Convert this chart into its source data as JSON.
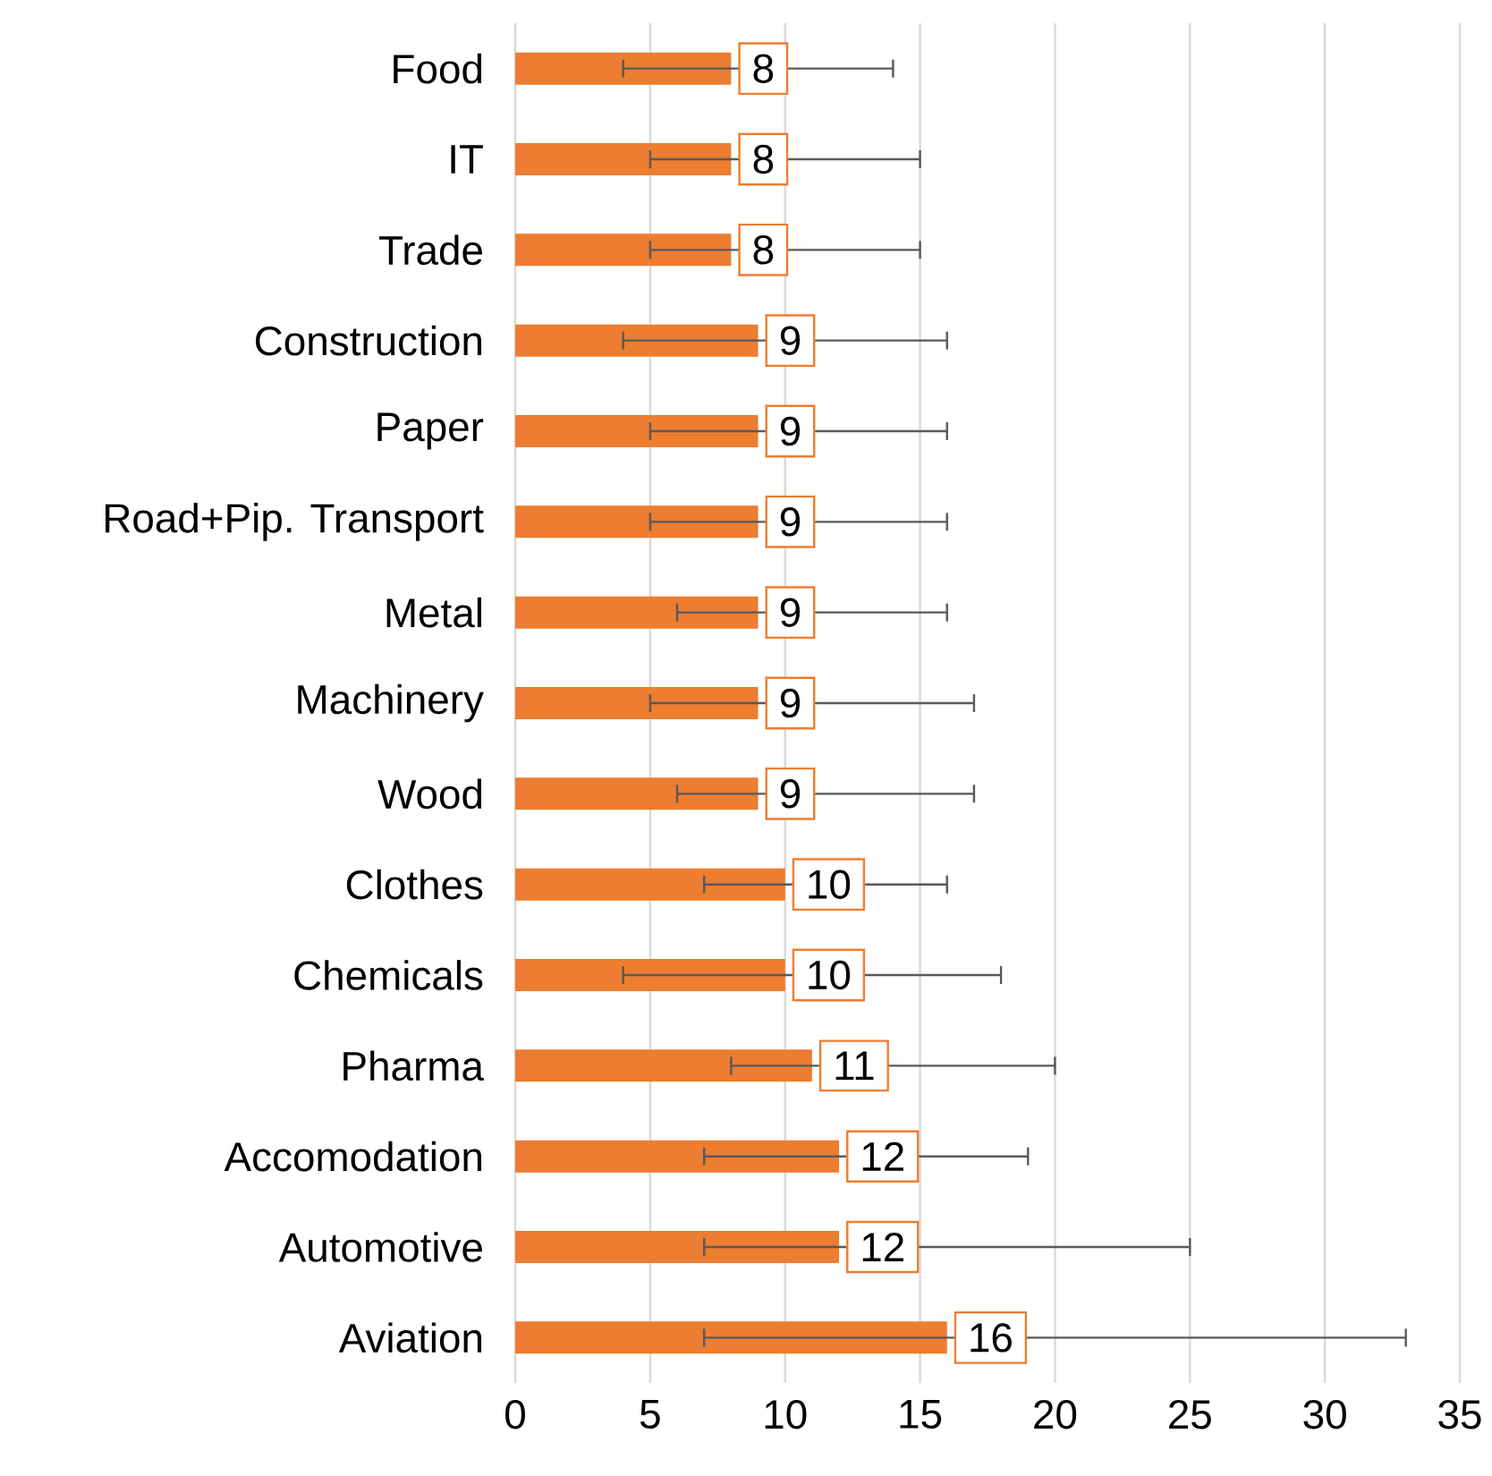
{
  "chart_data": {
    "type": "bar",
    "orientation": "horizontal",
    "categories": [
      "Food",
      "IT",
      "Trade",
      "Construction",
      "Paper",
      "Road+Pip. Transport",
      "Metal",
      "Machinery",
      "Wood",
      "Clothes",
      "Chemicals",
      "Pharma",
      "Accomodation",
      "Automotive",
      "Aviation"
    ],
    "values": [
      8,
      8,
      8,
      9,
      9,
      9,
      9,
      9,
      9,
      10,
      10,
      11,
      12,
      12,
      16
    ],
    "errors": [
      [
        4,
        14
      ],
      [
        5,
        15
      ],
      [
        5,
        15
      ],
      [
        4,
        16
      ],
      [
        5,
        16
      ],
      [
        5,
        16
      ],
      [
        6,
        16
      ],
      [
        5,
        17
      ],
      [
        6,
        17
      ],
      [
        7,
        16
      ],
      [
        4,
        18
      ],
      [
        8,
        20
      ],
      [
        7,
        19
      ],
      [
        7,
        25
      ],
      [
        7,
        33
      ]
    ],
    "color": "#ed7d31",
    "xlim": [
      0,
      35
    ],
    "xticks": [
      0,
      5,
      10,
      15,
      20,
      25,
      30,
      35
    ],
    "grid": "x",
    "data_labels": true
  }
}
